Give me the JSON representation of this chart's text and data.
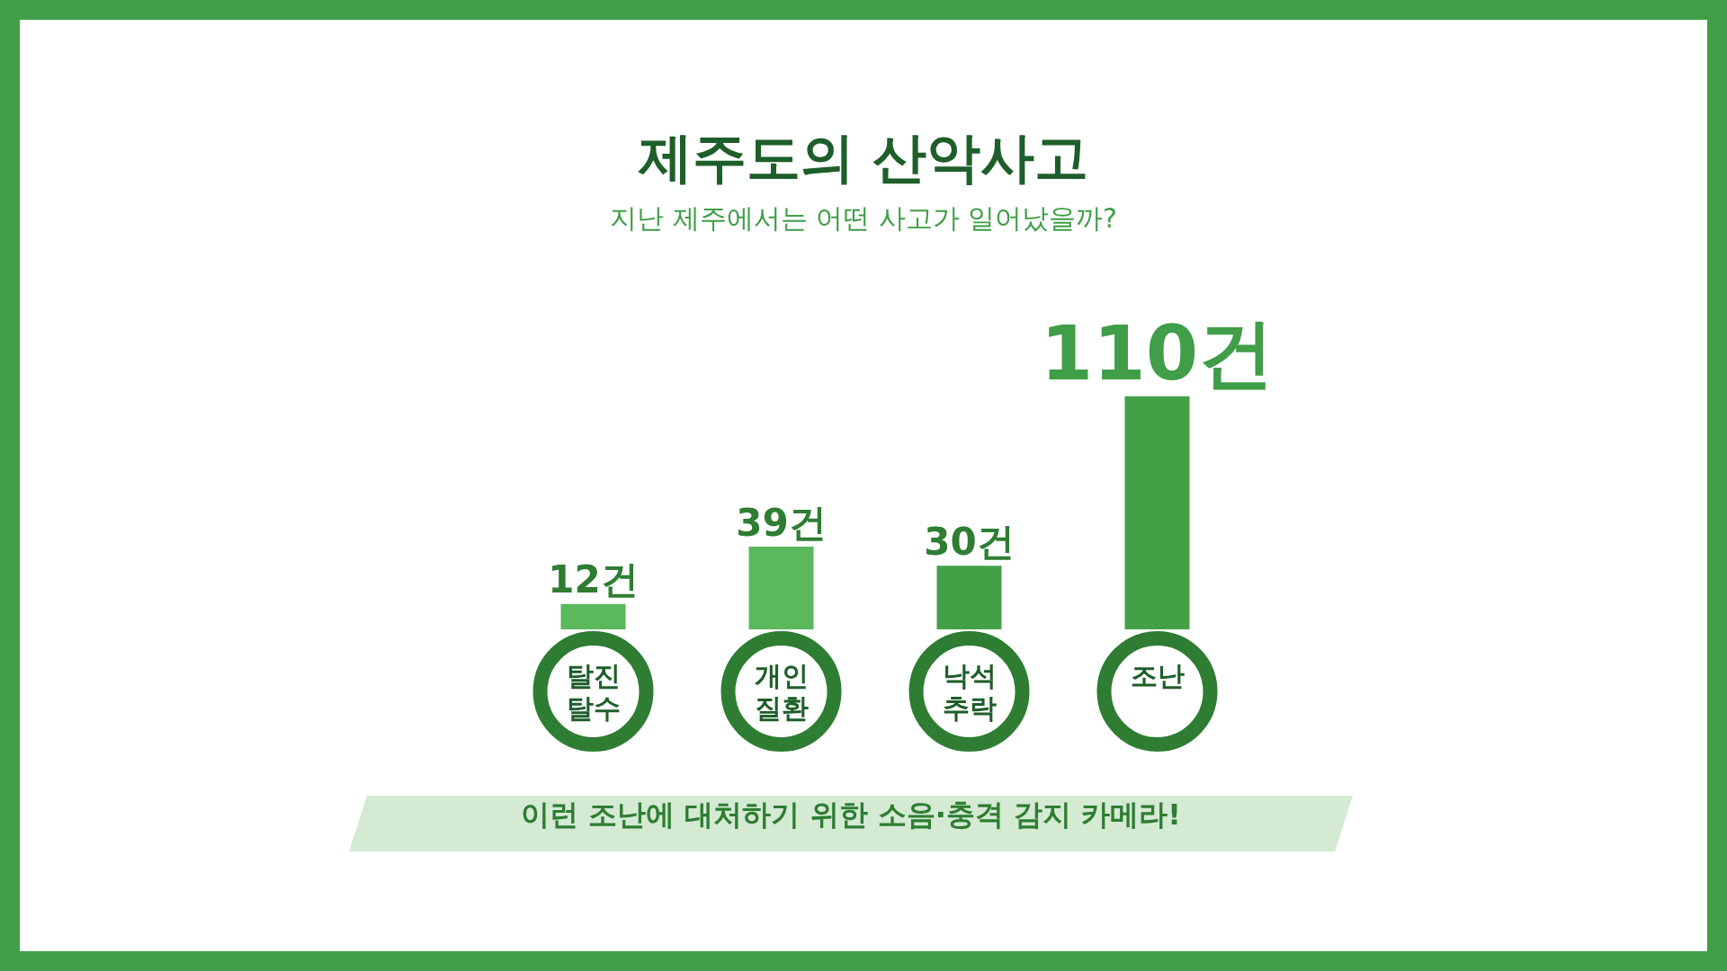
{
  "chart_data": {
    "type": "bar",
    "title": "제주도의 산악사고",
    "subtitle": "지난 제주에서는 어떤 사고가 일어났을까?",
    "categories": [
      "탈진 탈수",
      "개인 질환",
      "낙석 추락",
      "조난"
    ],
    "values": [
      12,
      39,
      30,
      110
    ],
    "colors": [
      "#5cb85c",
      "#5cb85c",
      "#43a047",
      "#43a047"
    ],
    "value_labels": [
      "12건",
      "39건",
      "30건",
      "110건"
    ],
    "annotations": [
      "이런 조난에 대처하기 위한 소음·충격 감지 카메라!"
    ]
  }
}
